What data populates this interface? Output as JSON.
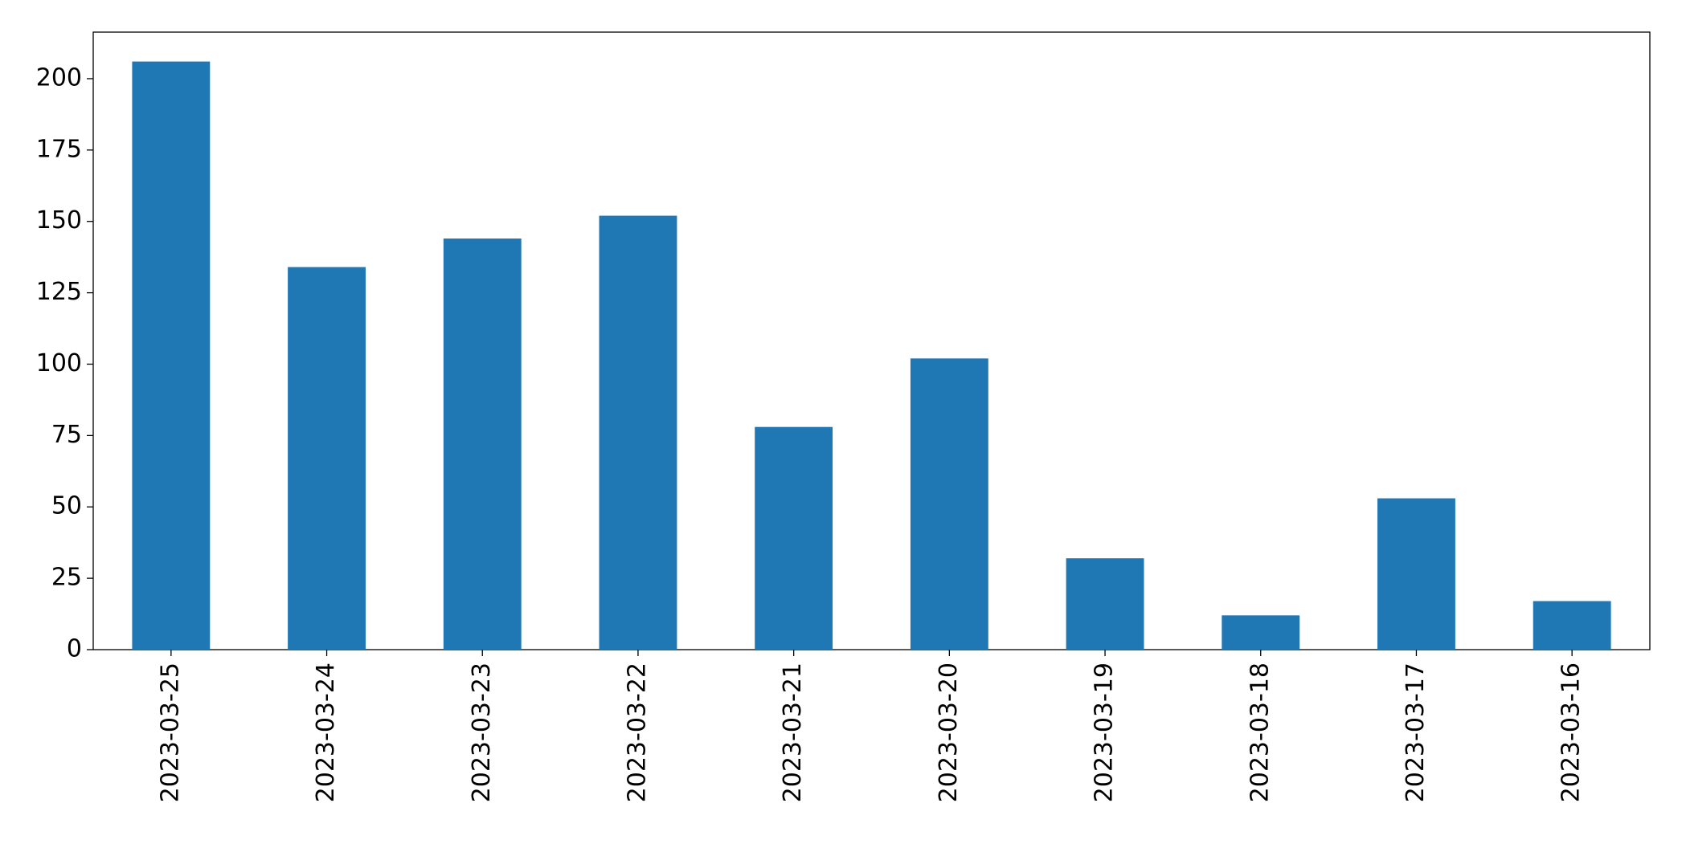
{
  "chart_data": {
    "type": "bar",
    "categories": [
      "2023-03-25",
      "2023-03-24",
      "2023-03-23",
      "2023-03-22",
      "2023-03-21",
      "2023-03-20",
      "2023-03-19",
      "2023-03-18",
      "2023-03-17",
      "2023-03-16"
    ],
    "values": [
      206,
      134,
      144,
      152,
      78,
      102,
      32,
      12,
      53,
      17
    ],
    "color": "#1f77b4",
    "ylim": [
      0,
      216.3
    ],
    "yticks": [
      0,
      25,
      50,
      75,
      100,
      125,
      150,
      175,
      200
    ],
    "grid": false
  }
}
